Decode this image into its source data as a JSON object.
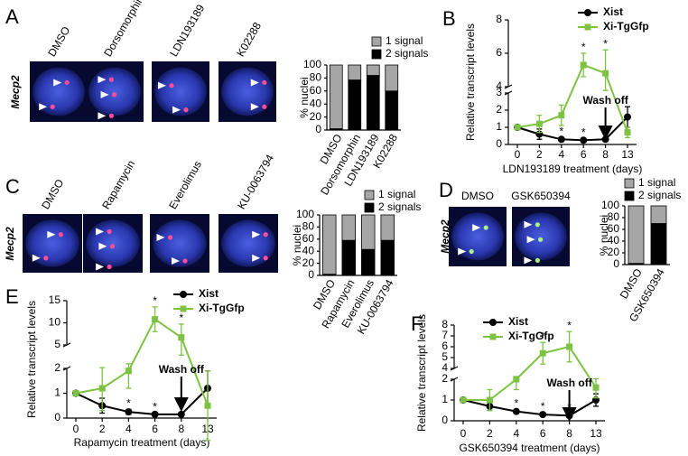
{
  "image_panels": [
    {
      "panel": "A",
      "probe": "Mecp2",
      "probe_color": "#e0203a",
      "labels": [
        "DMSO",
        "Dorsomorphin",
        "LDN193189",
        "K02288"
      ]
    },
    {
      "panel": "C",
      "probe": "Mecp2",
      "probe_color": "#e0203a",
      "labels": [
        "DMSO",
        "Rapamycin",
        "Everolimus",
        "KU-0063794"
      ]
    },
    {
      "panel": "D",
      "probe": "Mecp2",
      "probe_color": "#3aa83a",
      "labels": [
        "DMSO",
        "GSK650394"
      ]
    }
  ],
  "chart_data": [
    {
      "type": "bar",
      "stacked": true,
      "ylabel": "% nuclei",
      "categories": [
        "DMSO",
        "Dorsomorphin",
        "LDN193189",
        "K02288"
      ],
      "series": [
        {
          "name": "1 signal",
          "color": "#a6a6a6",
          "values": [
            98,
            23,
            16,
            40
          ]
        },
        {
          "name": "2 signals",
          "color": "#000000",
          "values": [
            2,
            77,
            84,
            60
          ]
        }
      ],
      "ylim": [
        0,
        100
      ],
      "yticks": [
        0,
        20,
        40,
        60,
        80,
        100
      ],
      "legend": "top-right"
    },
    {
      "type": "line",
      "panel": "B",
      "ylabel": "Relative transcript levels",
      "xlabel": "LDN193189 treatment (days)",
      "categories": [
        "0",
        "2",
        "4",
        "6",
        "8",
        "13"
      ],
      "series": [
        {
          "name": "Xist",
          "color": "#000000",
          "marker": "circle",
          "values": [
            1,
            0.6,
            0.3,
            0.25,
            0.3,
            1.6
          ],
          "errors": [
            0,
            0.3,
            0.1,
            0.1,
            0.1,
            0.6
          ]
        },
        {
          "name": "Xi-TgGfp",
          "color": "#7dc242",
          "marker": "square",
          "values": [
            1,
            1.2,
            1.7,
            5.3,
            4.8,
            0.7
          ],
          "errors": [
            0,
            0.5,
            0.6,
            0.7,
            1.4,
            0.3
          ]
        }
      ],
      "ysegments": [
        {
          "ylim": [
            0,
            3
          ],
          "yticks": [
            0,
            1,
            2,
            3
          ]
        },
        {
          "ylim": [
            4,
            8
          ],
          "yticks": [
            4,
            6,
            8
          ]
        }
      ],
      "significance": [
        {
          "label": "*",
          "series": "Xist",
          "x": "4"
        },
        {
          "label": "*",
          "series": "Xist",
          "x": "6"
        },
        {
          "label": "*",
          "series": "Xist",
          "x": "8"
        },
        {
          "label": "*",
          "series": "Xi-TgGfp",
          "x": "6"
        },
        {
          "label": "*",
          "series": "Xi-TgGfp",
          "x": "8"
        }
      ],
      "annotation": {
        "text": "Wash off",
        "x": "8"
      }
    },
    {
      "type": "bar",
      "stacked": true,
      "ylabel": "% nuclei",
      "categories": [
        "DMSO",
        "Rapamycin",
        "Everolimus",
        "KU-0063794"
      ],
      "series": [
        {
          "name": "1 signal",
          "color": "#a6a6a6",
          "values": [
            98,
            42,
            57,
            42
          ]
        },
        {
          "name": "2 signals",
          "color": "#000000",
          "values": [
            2,
            58,
            43,
            58
          ]
        }
      ],
      "ylim": [
        0,
        100
      ],
      "yticks": [
        0,
        20,
        40,
        60,
        80,
        100
      ],
      "legend": "top-right"
    },
    {
      "type": "bar",
      "stacked": true,
      "ylabel": "% nuclei",
      "categories": [
        "DMSO",
        "GSK650394"
      ],
      "series": [
        {
          "name": "1 signal",
          "color": "#a6a6a6",
          "values": [
            98,
            30
          ]
        },
        {
          "name": "2 signals",
          "color": "#000000",
          "values": [
            2,
            70
          ]
        }
      ],
      "ylim": [
        0,
        100
      ],
      "yticks": [
        0,
        20,
        40,
        60,
        80,
        100
      ],
      "legend": "top-right"
    },
    {
      "type": "line",
      "panel": "E",
      "ylabel": "Relative transcript levels",
      "xlabel": "Rapamycin treatment (days)",
      "categories": [
        "0",
        "2",
        "4",
        "6",
        "8",
        "13"
      ],
      "series": [
        {
          "name": "Xist",
          "color": "#000000",
          "marker": "circle",
          "values": [
            1,
            0.5,
            0.25,
            0.15,
            0.15,
            1.2
          ],
          "errors": [
            0,
            0.3,
            0.1,
            0.05,
            0.05,
            0.7
          ]
        },
        {
          "name": "Xi-TgGfp",
          "color": "#7dc242",
          "marker": "square",
          "values": [
            1,
            1.2,
            1.9,
            10.8,
            6.7,
            0.5
          ],
          "errors": [
            0,
            0.9,
            0.7,
            2.8,
            3,
            1.4
          ]
        }
      ],
      "ysegments": [
        {
          "ylim": [
            0,
            2
          ],
          "yticks": [
            0,
            1,
            2
          ]
        },
        {
          "ylim": [
            5,
            15
          ],
          "yticks": [
            5,
            10,
            15
          ]
        }
      ],
      "significance": [
        {
          "label": "*",
          "series": "Xist",
          "x": "4"
        },
        {
          "label": "*",
          "series": "Xist",
          "x": "6"
        },
        {
          "label": "*",
          "series": "Xist",
          "x": "8"
        },
        {
          "label": "*",
          "series": "Xi-TgGfp",
          "x": "6"
        },
        {
          "label": "*",
          "series": "Xi-TgGfp",
          "x": "8"
        }
      ],
      "annotation": {
        "text": "Wash off",
        "x": "8"
      }
    },
    {
      "type": "line",
      "panel": "F",
      "ylabel": "Relative transcript levels",
      "xlabel": "GSK650394 treatment (days)",
      "categories": [
        "0",
        "2",
        "4",
        "6",
        "8",
        "13"
      ],
      "series": [
        {
          "name": "Xist",
          "color": "#000000",
          "marker": "circle",
          "values": [
            1,
            0.7,
            0.45,
            0.3,
            0.25,
            1
          ],
          "errors": [
            0,
            0.2,
            0.1,
            0.1,
            0.1,
            0.3
          ]
        },
        {
          "name": "Xi-TgGfp",
          "color": "#7dc242",
          "marker": "square",
          "values": [
            1,
            1,
            2,
            5.4,
            6,
            1.6
          ],
          "errors": [
            0,
            0.5,
            0.5,
            1,
            1.4,
            0.5
          ]
        }
      ],
      "ysegments": [
        {
          "ylim": [
            0,
            2
          ],
          "yticks": [
            0,
            1,
            2
          ]
        },
        {
          "ylim": [
            4,
            8
          ],
          "yticks": [
            4,
            5,
            6,
            7,
            8
          ]
        }
      ],
      "significance": [
        {
          "label": "*",
          "series": "Xist",
          "x": "4"
        },
        {
          "label": "*",
          "series": "Xist",
          "x": "6"
        },
        {
          "label": "*",
          "series": "Xist",
          "x": "8"
        },
        {
          "label": "*",
          "series": "Xi-TgGfp",
          "x": "6"
        },
        {
          "label": "*",
          "series": "Xi-TgGfp",
          "x": "8"
        }
      ],
      "annotation": {
        "text": "Wash off",
        "x": "8"
      }
    }
  ]
}
